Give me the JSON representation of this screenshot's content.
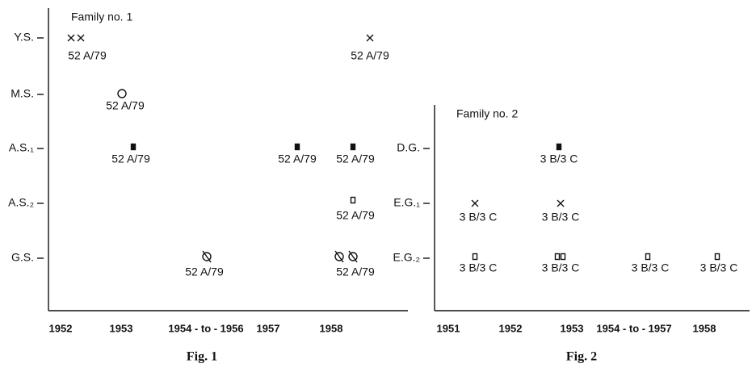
{
  "figures": [
    {
      "title": "Family no. 1",
      "caption": "Fig. 1",
      "rows": [
        "Y.S.",
        "M.S.",
        "A.S.₁",
        "A.S.₂",
        "G.S."
      ],
      "columns": [
        "1952",
        "1953",
        "1954 - to - 1956",
        "1957",
        "1958"
      ],
      "points": [
        {
          "label": "52 A/79"
        },
        {
          "label": "52 A/79"
        },
        {
          "label": "52 A/79"
        },
        {
          "label": "52 A/79"
        },
        {
          "label": "52 A/79"
        },
        {
          "label": "52 A/79"
        },
        {
          "label": "52 A/79"
        },
        {
          "label": "52 A/79"
        },
        {
          "label": "52 A/79"
        }
      ]
    },
    {
      "title": "Family no. 2",
      "caption": "Fig. 2",
      "rows": [
        "D.G.",
        "E.G.₁",
        "E.G.₂"
      ],
      "columns": [
        "1951",
        "1952",
        "1953",
        "1954 - to - 1957",
        "1958"
      ],
      "points": [
        {
          "label": "3 B/3 C"
        },
        {
          "label": "3 B/3 C"
        },
        {
          "label": "3 B/3 C"
        },
        {
          "label": "3 B/3 C"
        },
        {
          "label": "3 B/3 C"
        },
        {
          "label": "3 B/3 C"
        },
        {
          "label": "3 B/3 C"
        }
      ]
    }
  ]
}
